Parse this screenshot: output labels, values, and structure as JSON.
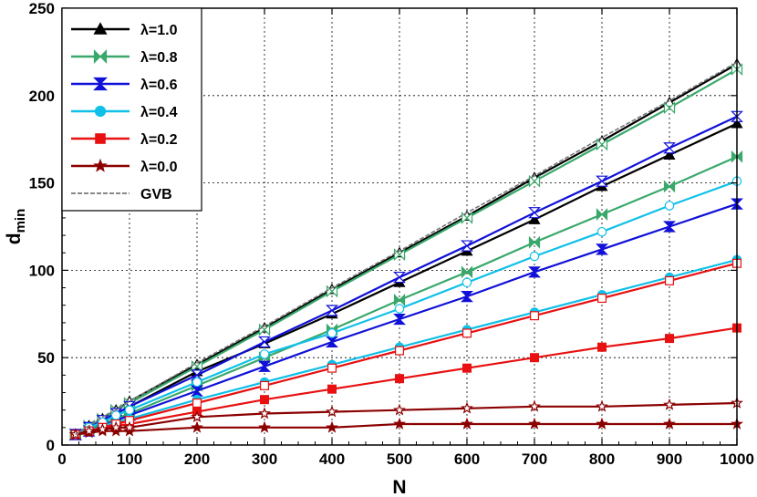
{
  "chart_data": {
    "type": "line",
    "xlabel": "N",
    "ylabel": "d",
    "ylabel_sub": "min",
    "xlim": [
      0,
      1000
    ],
    "ylim": [
      0,
      250
    ],
    "xticks": [
      0,
      100,
      200,
      300,
      400,
      500,
      600,
      700,
      800,
      900,
      1000
    ],
    "yticks": [
      0,
      50,
      100,
      150,
      200,
      250
    ],
    "grid": "dotted",
    "legend_position": "top-left",
    "x": [
      20,
      40,
      60,
      80,
      100,
      200,
      300,
      400,
      500,
      600,
      700,
      800,
      900,
      1000
    ],
    "series": [
      {
        "name": "λ=1.0",
        "color": "#000000",
        "marker": "triangle",
        "fill": "filled",
        "values": [
          6,
          10,
          14,
          18,
          22,
          42,
          58,
          75,
          93,
          111,
          129,
          148,
          166,
          184
        ]
      },
      {
        "name": "λ=1.0",
        "color": "#000000",
        "marker": "triangle",
        "fill": "open",
        "values": [
          6,
          11,
          15,
          20,
          25,
          46,
          67,
          89,
          110,
          131,
          153,
          174,
          196,
          218
        ]
      },
      {
        "name": "λ=0.8",
        "color": "#3aa86b",
        "marker": "bowtie",
        "fill": "filled",
        "values": [
          6,
          9,
          12,
          15,
          18,
          34,
          50,
          66,
          83,
          99,
          116,
          132,
          148,
          165
        ]
      },
      {
        "name": "λ=0.8",
        "color": "#3aa86b",
        "marker": "bowtie",
        "fill": "open",
        "values": [
          6,
          11,
          15,
          20,
          24,
          45,
          66,
          88,
          109,
          130,
          151,
          172,
          193,
          215
        ]
      },
      {
        "name": "λ=0.6",
        "color": "#1010d8",
        "marker": "hourglass",
        "fill": "filled",
        "values": [
          6,
          8,
          11,
          14,
          17,
          31,
          45,
          59,
          72,
          85,
          99,
          112,
          125,
          138
        ]
      },
      {
        "name": "λ=0.6",
        "color": "#1010d8",
        "marker": "hourglass",
        "fill": "open",
        "values": [
          6,
          10,
          14,
          18,
          22,
          40,
          59,
          77,
          96,
          114,
          133,
          151,
          170,
          188
        ]
      },
      {
        "name": "λ=0.4",
        "color": "#10c0e8",
        "marker": "circle",
        "fill": "filled",
        "values": [
          6,
          8,
          11,
          13,
          15,
          26,
          36,
          46,
          56,
          66,
          76,
          86,
          96,
          106
        ]
      },
      {
        "name": "λ=0.4",
        "color": "#10c0e8",
        "marker": "circle",
        "fill": "open",
        "values": [
          6,
          10,
          13,
          17,
          20,
          36,
          52,
          64,
          78,
          93,
          108,
          122,
          137,
          151
        ]
      },
      {
        "name": "λ=0.2",
        "color": "#e81010",
        "marker": "square",
        "fill": "filled",
        "values": [
          6,
          8,
          10,
          11,
          12,
          19,
          26,
          32,
          38,
          44,
          50,
          56,
          61,
          67
        ]
      },
      {
        "name": "λ=0.2",
        "color": "#e81010",
        "marker": "square",
        "fill": "open",
        "values": [
          6,
          8,
          10,
          12,
          14,
          24,
          34,
          44,
          54,
          64,
          74,
          84,
          94,
          104
        ]
      },
      {
        "name": "λ=0.0",
        "color": "#8b0000",
        "marker": "star",
        "fill": "filled",
        "values": [
          6,
          7,
          8,
          8,
          8,
          10,
          10,
          10,
          12,
          12,
          12,
          12,
          12,
          12
        ]
      },
      {
        "name": "λ=0.0",
        "color": "#8b0000",
        "marker": "star",
        "fill": "open",
        "values": [
          6,
          8,
          9,
          10,
          10,
          16,
          18,
          19,
          20,
          21,
          22,
          22,
          23,
          24
        ]
      },
      {
        "name": "GVB",
        "color": "#777777",
        "marker": "none",
        "fill": "none",
        "dashed": true,
        "values": [
          6,
          11,
          16,
          20,
          25,
          47,
          68,
          90,
          111,
          133,
          154,
          176,
          197,
          219
        ]
      }
    ],
    "legend": [
      {
        "label": "λ=1.0",
        "color": "#000000",
        "marker": "triangle"
      },
      {
        "label": "λ=0.8",
        "color": "#3aa86b",
        "marker": "bowtie"
      },
      {
        "label": "λ=0.6",
        "color": "#1010d8",
        "marker": "hourglass"
      },
      {
        "label": "λ=0.4",
        "color": "#10c0e8",
        "marker": "circle"
      },
      {
        "label": "λ=0.2",
        "color": "#e81010",
        "marker": "square"
      },
      {
        "label": "λ=0.0",
        "color": "#8b0000",
        "marker": "star"
      },
      {
        "label": "GVB",
        "color": "#777777",
        "marker": "none"
      }
    ]
  }
}
